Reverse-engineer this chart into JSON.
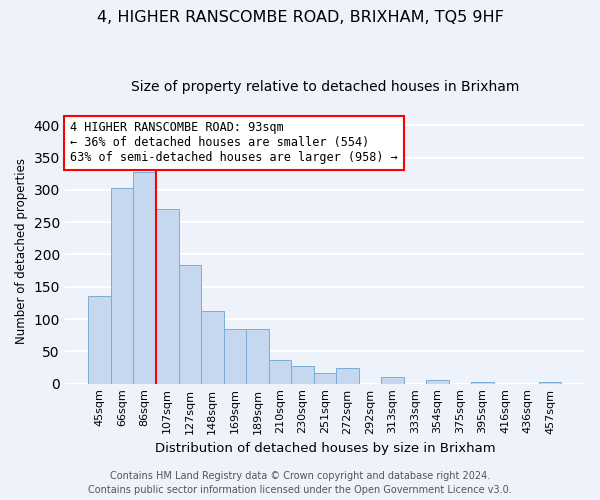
{
  "title": "4, HIGHER RANSCOMBE ROAD, BRIXHAM, TQ5 9HF",
  "subtitle": "Size of property relative to detached houses in Brixham",
  "xlabel": "Distribution of detached houses by size in Brixham",
  "ylabel": "Number of detached properties",
  "categories": [
    "45sqm",
    "66sqm",
    "86sqm",
    "107sqm",
    "127sqm",
    "148sqm",
    "169sqm",
    "189sqm",
    "210sqm",
    "230sqm",
    "251sqm",
    "272sqm",
    "292sqm",
    "313sqm",
    "333sqm",
    "354sqm",
    "375sqm",
    "395sqm",
    "416sqm",
    "436sqm",
    "457sqm"
  ],
  "values": [
    135,
    303,
    327,
    271,
    183,
    113,
    84,
    84,
    37,
    27,
    17,
    24,
    0,
    11,
    0,
    5,
    0,
    2,
    0,
    0,
    3
  ],
  "bar_color": "#c5d8f0",
  "bar_edge_color": "#7aaed6",
  "vline_color": "red",
  "vline_pos": 2.5,
  "annotation_text": "4 HIGHER RANSCOMBE ROAD: 93sqm\n← 36% of detached houses are smaller (554)\n63% of semi-detached houses are larger (958) →",
  "annotation_box_color": "white",
  "annotation_box_edge": "red",
  "ylim": [
    0,
    410
  ],
  "yticks": [
    0,
    50,
    100,
    150,
    200,
    250,
    300,
    350,
    400
  ],
  "footer1": "Contains HM Land Registry data © Crown copyright and database right 2024.",
  "footer2": "Contains public sector information licensed under the Open Government Licence v3.0.",
  "bg_color": "#eef2fa",
  "grid_color": "white",
  "title_fontsize": 11.5,
  "subtitle_fontsize": 10,
  "annotation_fontsize": 8.5,
  "xlabel_fontsize": 9.5,
  "ylabel_fontsize": 8.5,
  "footer_fontsize": 7,
  "xtick_fontsize": 8,
  "ytick_fontsize": 9
}
